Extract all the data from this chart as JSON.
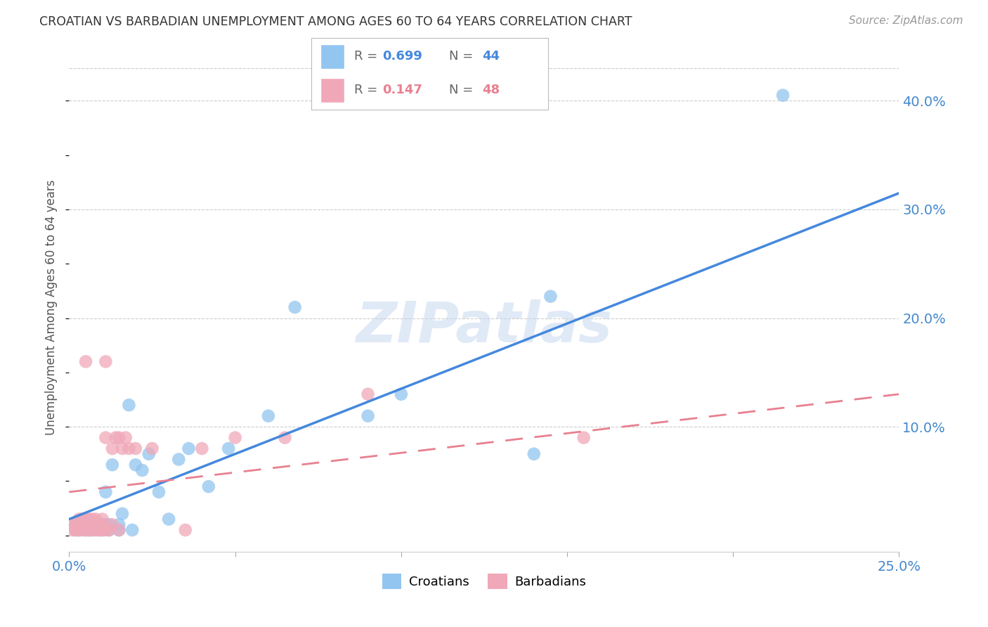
{
  "title": "CROATIAN VS BARBADIAN UNEMPLOYMENT AMONG AGES 60 TO 64 YEARS CORRELATION CHART",
  "source": "Source: ZipAtlas.com",
  "ylabel": "Unemployment Among Ages 60 to 64 years",
  "xlim": [
    0,
    0.25
  ],
  "ylim": [
    -0.015,
    0.435
  ],
  "xticks": [
    0.0,
    0.05,
    0.1,
    0.15,
    0.2,
    0.25
  ],
  "xtick_labels": [
    "0.0%",
    "",
    "",
    "",
    "",
    "25.0%"
  ],
  "ytick_positions": [
    0.1,
    0.2,
    0.3,
    0.4
  ],
  "ytick_labels": [
    "10.0%",
    "20.0%",
    "30.0%",
    "40.0%"
  ],
  "croatian_R": 0.699,
  "croatian_N": 44,
  "barbadian_R": 0.147,
  "barbadian_N": 48,
  "croatian_color": "#92c5f0",
  "barbadian_color": "#f0a8b8",
  "croatian_line_color": "#4488dd",
  "barbadian_line_color": "#e88090",
  "croatian_line": [
    [
      0.0,
      0.015
    ],
    [
      0.25,
      0.315
    ]
  ],
  "barbadian_line": [
    [
      0.0,
      0.04
    ],
    [
      0.25,
      0.13
    ]
  ],
  "watermark_text": "ZIPatlas",
  "croatian_x": [
    0.002,
    0.002,
    0.003,
    0.003,
    0.004,
    0.004,
    0.005,
    0.005,
    0.005,
    0.006,
    0.006,
    0.007,
    0.007,
    0.008,
    0.009,
    0.009,
    0.01,
    0.01,
    0.011,
    0.011,
    0.012,
    0.012,
    0.013,
    0.015,
    0.015,
    0.016,
    0.018,
    0.019,
    0.02,
    0.022,
    0.024,
    0.027,
    0.03,
    0.033,
    0.036,
    0.042,
    0.048,
    0.06,
    0.068,
    0.09,
    0.1,
    0.14,
    0.145,
    0.215
  ],
  "croatian_y": [
    0.005,
    0.01,
    0.005,
    0.01,
    0.008,
    0.015,
    0.005,
    0.01,
    0.015,
    0.005,
    0.01,
    0.005,
    0.012,
    0.008,
    0.005,
    0.01,
    0.005,
    0.01,
    0.01,
    0.04,
    0.005,
    0.01,
    0.065,
    0.005,
    0.01,
    0.02,
    0.12,
    0.005,
    0.065,
    0.06,
    0.075,
    0.04,
    0.015,
    0.07,
    0.08,
    0.045,
    0.08,
    0.11,
    0.21,
    0.11,
    0.13,
    0.075,
    0.22,
    0.405
  ],
  "barbadian_x": [
    0.001,
    0.001,
    0.002,
    0.002,
    0.003,
    0.003,
    0.003,
    0.004,
    0.004,
    0.004,
    0.005,
    0.005,
    0.005,
    0.005,
    0.006,
    0.006,
    0.006,
    0.007,
    0.007,
    0.007,
    0.008,
    0.008,
    0.008,
    0.009,
    0.009,
    0.01,
    0.01,
    0.01,
    0.011,
    0.011,
    0.011,
    0.012,
    0.013,
    0.013,
    0.014,
    0.015,
    0.015,
    0.016,
    0.017,
    0.018,
    0.02,
    0.025,
    0.035,
    0.04,
    0.05,
    0.065,
    0.09,
    0.155
  ],
  "barbadian_y": [
    0.005,
    0.01,
    0.005,
    0.01,
    0.005,
    0.01,
    0.015,
    0.005,
    0.01,
    0.015,
    0.005,
    0.01,
    0.015,
    0.16,
    0.005,
    0.01,
    0.015,
    0.005,
    0.01,
    0.015,
    0.005,
    0.01,
    0.015,
    0.005,
    0.01,
    0.005,
    0.01,
    0.015,
    0.005,
    0.09,
    0.16,
    0.005,
    0.01,
    0.08,
    0.09,
    0.005,
    0.09,
    0.08,
    0.09,
    0.08,
    0.08,
    0.08,
    0.005,
    0.08,
    0.09,
    0.09,
    0.13,
    0.09
  ]
}
